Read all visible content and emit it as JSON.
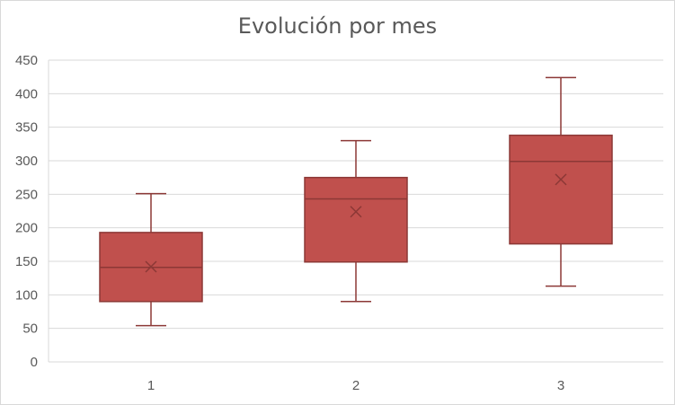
{
  "chart_data": {
    "type": "box",
    "title": "Evolución por mes",
    "xlabel": "",
    "ylabel": "",
    "ylim": [
      0,
      450
    ],
    "yticks": [
      0,
      50,
      100,
      150,
      200,
      250,
      300,
      350,
      400,
      450
    ],
    "grid": true,
    "categories": [
      "1",
      "2",
      "3"
    ],
    "boxes": [
      {
        "category": "1",
        "min": 54,
        "q1": 90,
        "median": 141,
        "q3": 193,
        "max": 251,
        "mean": 142
      },
      {
        "category": "2",
        "min": 90,
        "q1": 149,
        "median": 243,
        "q3": 275,
        "max": 330,
        "mean": 224
      },
      {
        "category": "3",
        "min": 113,
        "q1": 176,
        "median": 299,
        "q3": 338,
        "max": 424,
        "mean": 272
      }
    ],
    "colors": {
      "fill": "#c0504d",
      "stroke": "#8c3836",
      "grid": "#d9d9d9",
      "text": "#595959"
    }
  }
}
